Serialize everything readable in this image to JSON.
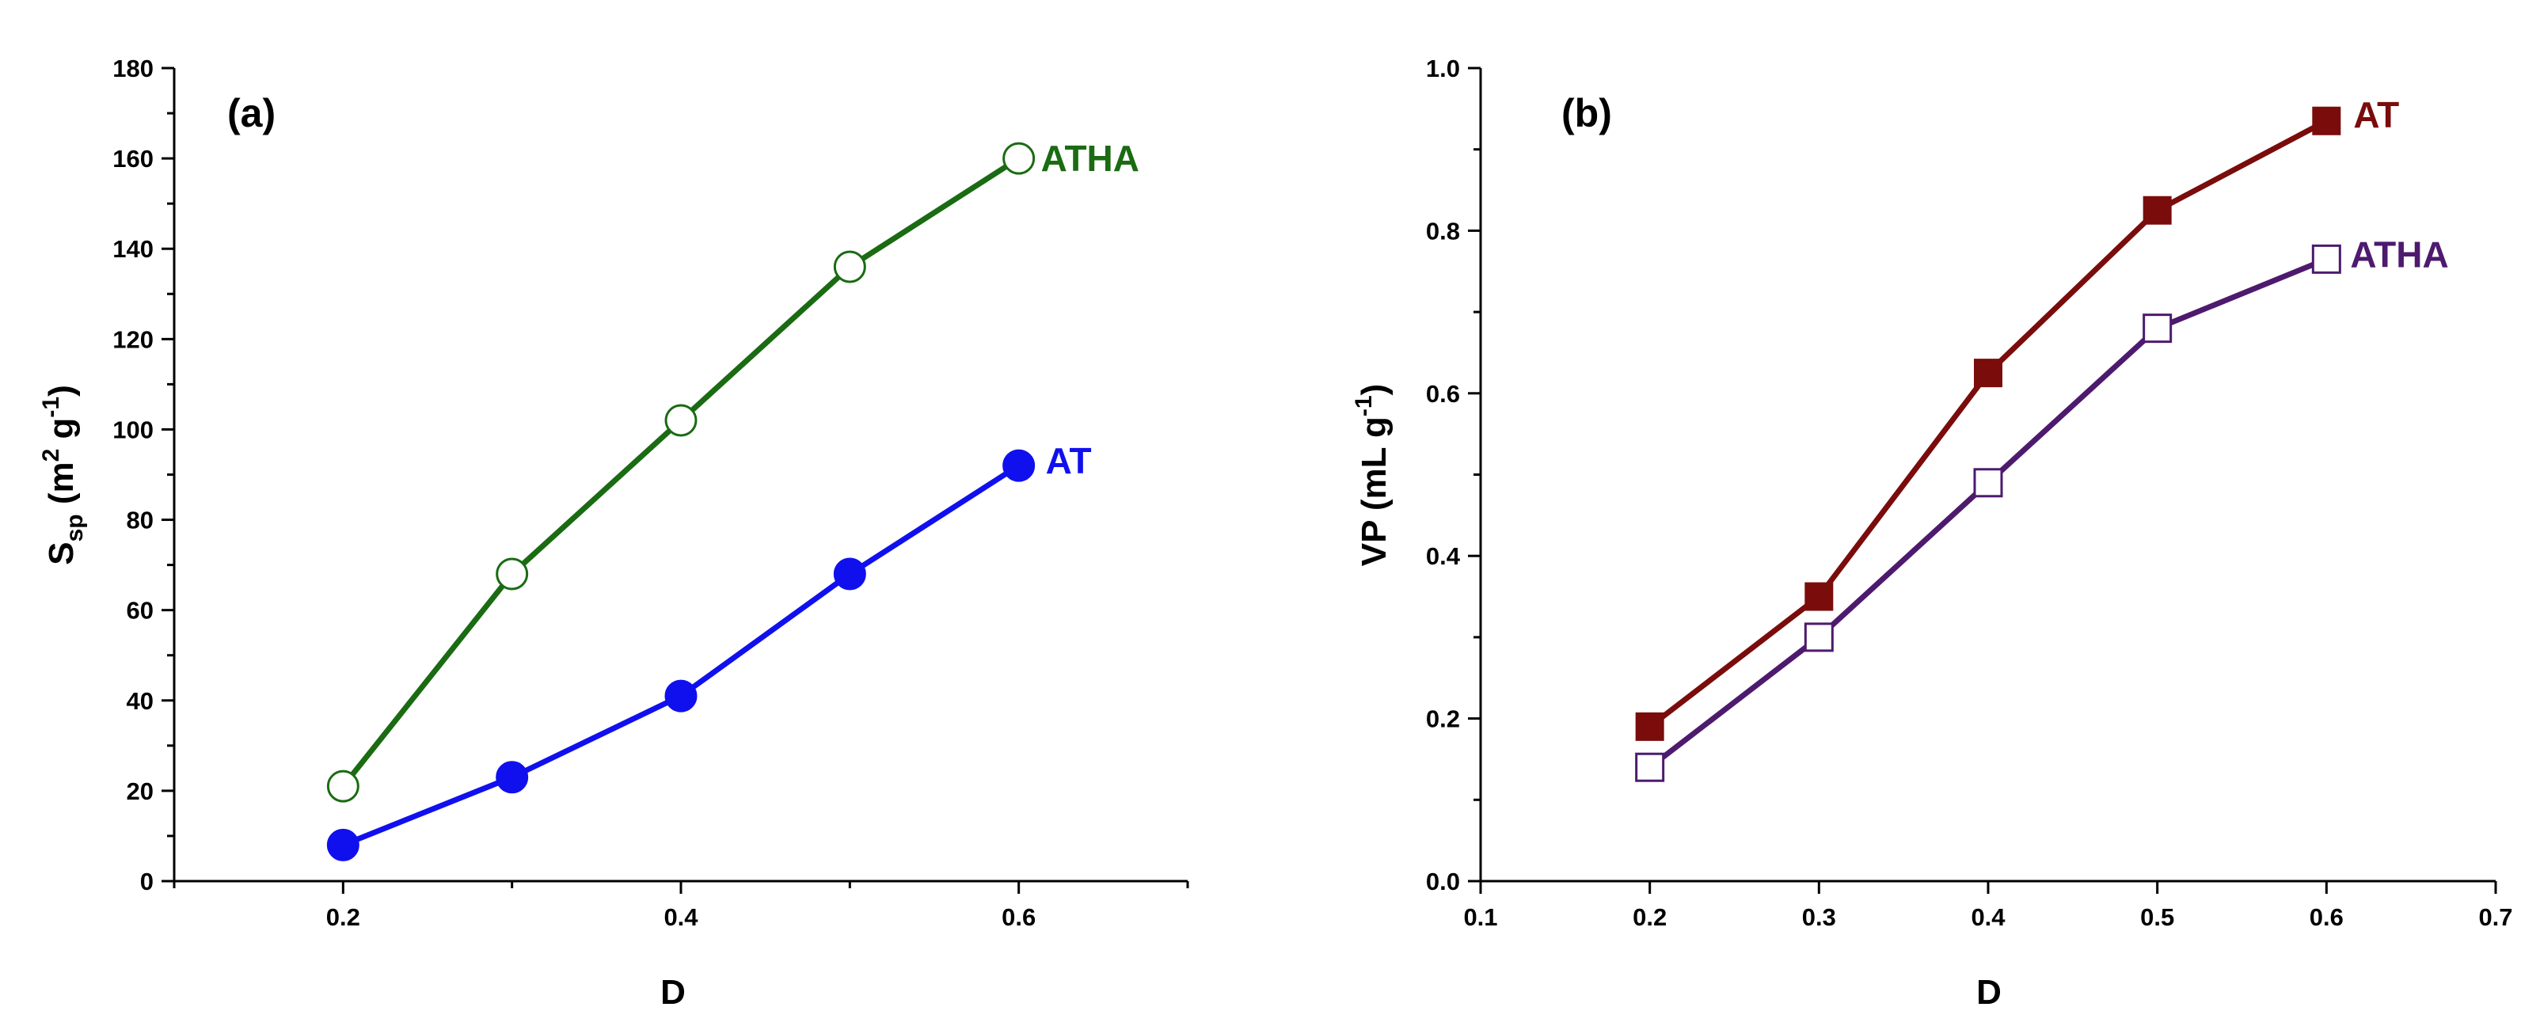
{
  "colors": {
    "atha_a": "#1a6b12",
    "at_a": "#1010ee",
    "at_b": "#7a0c0c",
    "atha_b": "#4d1a6e",
    "axis": "#000000"
  },
  "chart_data": [
    {
      "type": "line",
      "panel": "(a)",
      "xlabel": "D",
      "ylabel_main": "S",
      "ylabel_sub": "sp",
      "ylabel_rest": " (m",
      "ylabel_sup1": "2",
      "ylabel_mid": " g",
      "ylabel_sup2": "-1",
      "ylabel_end": ")",
      "xlim": [
        0.1,
        0.7
      ],
      "ylim": [
        0,
        180
      ],
      "xticks": [
        0.2,
        0.4,
        0.6
      ],
      "xtick_labels": [
        "0.2",
        "0.4",
        "0.6"
      ],
      "x_minor_ticks": [
        0.1,
        0.3,
        0.5,
        0.7
      ],
      "yticks": [
        0,
        20,
        40,
        60,
        80,
        100,
        120,
        140,
        160,
        180
      ],
      "ytick_labels": [
        "0",
        "20",
        "40",
        "60",
        "80",
        "100",
        "120",
        "140",
        "160",
        "180"
      ],
      "legend": "inline-labels",
      "series": [
        {
          "name": "ATHA",
          "marker": "open-circle",
          "color": "#1a6b12",
          "x": [
            0.2,
            0.3,
            0.4,
            0.5,
            0.6
          ],
          "y": [
            21,
            68,
            102,
            136,
            160
          ]
        },
        {
          "name": "AT",
          "marker": "filled-circle",
          "color": "#1010ee",
          "x": [
            0.2,
            0.3,
            0.4,
            0.5,
            0.6
          ],
          "y": [
            8,
            23,
            41,
            68,
            92
          ]
        }
      ]
    },
    {
      "type": "line",
      "panel": "(b)",
      "xlabel": "D",
      "ylabel_main": "VP (mL g",
      "ylabel_sup2": "-1",
      "ylabel_end": ")",
      "xlim": [
        0.1,
        0.7
      ],
      "ylim": [
        0.0,
        1.0
      ],
      "xticks": [
        0.1,
        0.2,
        0.3,
        0.4,
        0.5,
        0.6,
        0.7
      ],
      "xtick_labels": [
        "0.1",
        "0.2",
        "0.3",
        "0.4",
        "0.5",
        "0.6",
        "0.7"
      ],
      "yticks": [
        0.0,
        0.2,
        0.4,
        0.6,
        0.8,
        1.0
      ],
      "ytick_labels": [
        "0.0",
        "0.2",
        "0.4",
        "0.6",
        "0.8",
        "1.0"
      ],
      "y_minor_ticks": [
        0.1,
        0.3,
        0.5,
        0.7,
        0.9
      ],
      "legend": "inline-labels",
      "series": [
        {
          "name": "AT",
          "marker": "filled-square",
          "color": "#7a0c0c",
          "x": [
            0.2,
            0.3,
            0.4,
            0.5,
            0.6
          ],
          "y": [
            0.19,
            0.35,
            0.625,
            0.825,
            0.935
          ]
        },
        {
          "name": "ATHA",
          "marker": "open-square",
          "color": "#4d1a6e",
          "x": [
            0.2,
            0.3,
            0.4,
            0.5,
            0.6
          ],
          "y": [
            0.14,
            0.3,
            0.49,
            0.68,
            0.765
          ]
        }
      ]
    }
  ]
}
